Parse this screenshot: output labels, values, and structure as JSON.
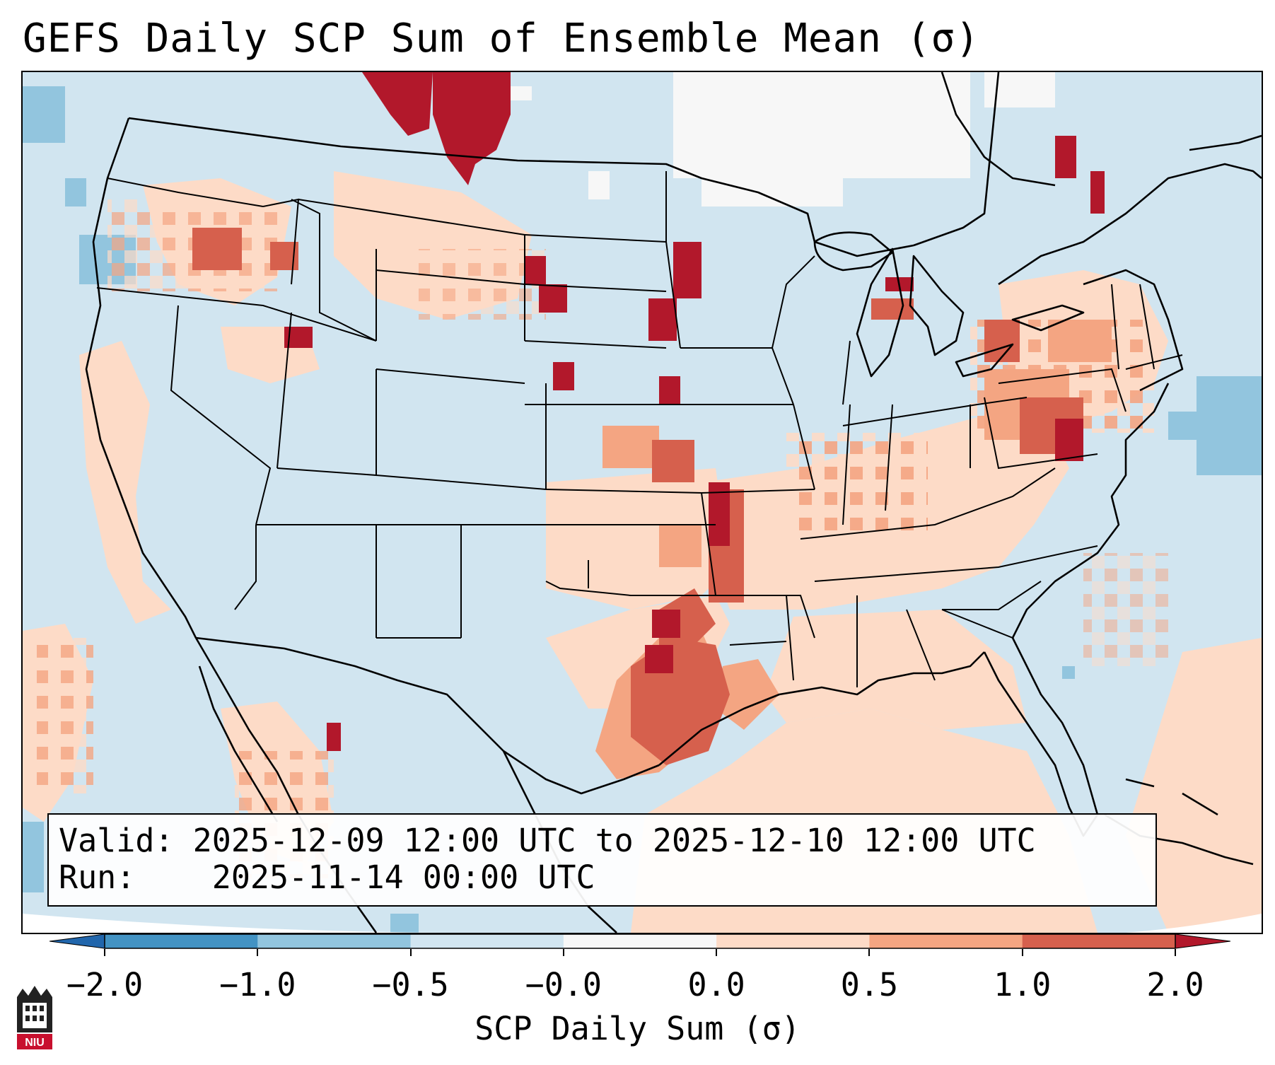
{
  "title": "GEFS Daily SCP Sum of Ensemble Mean (σ)",
  "info_box": {
    "valid_label": "Valid:",
    "valid_value": "2025-12-09 12:00 UTC to 2025-12-10 12:00 UTC",
    "run_label": "Run:",
    "run_value": "2025-11-14 00:00 UTC"
  },
  "colorbar": {
    "label": "SCP Daily Sum (σ)",
    "ticks": [
      "−2.0",
      "−1.0",
      "−0.5",
      "−0.0",
      "0.0",
      "0.5",
      "1.0",
      "2.0"
    ],
    "bins": [
      {
        "range": "< -2.0",
        "color": "#2166ac"
      },
      {
        "range": "-2.0 to -1.0",
        "color": "#4393c3"
      },
      {
        "range": "-1.0 to -0.5",
        "color": "#92c5de"
      },
      {
        "range": "-0.5 to -0.0",
        "color": "#d1e5f0"
      },
      {
        "range": "-0.0 to 0.0",
        "color": "#f7f7f7"
      },
      {
        "range": "0.0 to 0.5",
        "color": "#fddbc7"
      },
      {
        "range": "0.5 to 1.0",
        "color": "#f4a582"
      },
      {
        "range": "1.0 to 2.0",
        "color": "#d6604d"
      },
      {
        "range": "> 2.0",
        "color": "#b2182b"
      }
    ]
  },
  "logo": {
    "text": "NIU",
    "icon": "niu-logo-icon"
  },
  "colors": {
    "background": "#d1e5f0",
    "land_outline": "#000000"
  }
}
